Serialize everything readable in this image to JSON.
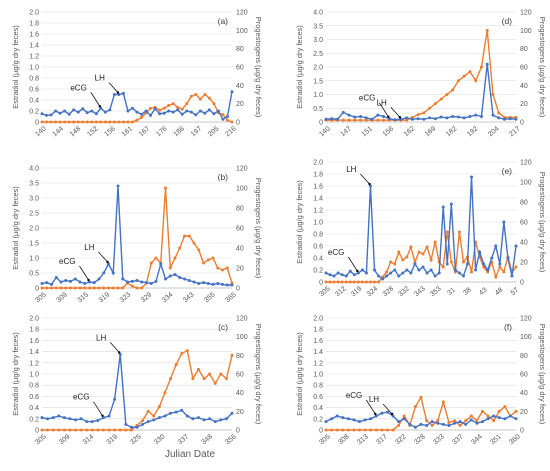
{
  "figure": {
    "xlabel": "Julian Date",
    "left_axis_label": "Estradiol (µg/g dry feces)",
    "right_axis_label": "Progestogens (µg/g dry feces)"
  },
  "colors": {
    "estradiol": "#4472c4",
    "progestogens": "#ed7d31",
    "grid": "#d9d9d9",
    "axis_text": "#595959"
  },
  "chart_data": [
    {
      "type": "line",
      "panel_label": "(a)",
      "x_tick_labels": [
        "140",
        "144",
        "148",
        "152",
        "156",
        "161",
        "167",
        "176",
        "186",
        "197",
        "205",
        "216"
      ],
      "y_left_lim": [
        0,
        2
      ],
      "y_left_ticks": [
        "0",
        "0.2",
        "0.4",
        "0.6",
        "0.8",
        "1.0",
        "1.2",
        "1.4",
        "1.6",
        "1.8",
        "2.0"
      ],
      "y_right_lim": [
        0,
        120
      ],
      "y_right_ticks": [
        "0",
        "20",
        "40",
        "60",
        "80",
        "100",
        "120"
      ],
      "grid": true,
      "series": [
        {
          "axis": "left",
          "color": "#4472c4",
          "values": [
            0.15,
            0.12,
            0.13,
            0.2,
            0.16,
            0.2,
            0.14,
            0.22,
            0.18,
            0.24,
            0.17,
            0.2,
            0.15,
            0.25,
            0.18,
            0.22,
            0.5,
            0.5,
            0.52,
            0.2,
            0.25,
            0.18,
            0.14,
            0.2,
            0.12,
            0.24,
            0.15,
            0.16,
            0.2,
            0.18,
            0.22,
            0.14,
            0.2,
            0.18,
            0.13,
            0.2,
            0.16,
            0.22,
            0.15,
            0.2,
            0.05,
            0.1,
            0.55
          ]
        },
        {
          "axis": "right",
          "color": "#ed7d31",
          "values": [
            0,
            0,
            0,
            0,
            0,
            0,
            0,
            0,
            0,
            0,
            0,
            0,
            0,
            0,
            0,
            0,
            0,
            0,
            0,
            0,
            0,
            2,
            5,
            10,
            15,
            16,
            13,
            15,
            18,
            20,
            16,
            14,
            20,
            28,
            30,
            25,
            30,
            26,
            20,
            10,
            8,
            2,
            0
          ]
        }
      ],
      "annotations": [
        {
          "text": "eCG",
          "x_index": 13
        },
        {
          "text": "LH",
          "x_index": 17
        }
      ]
    },
    {
      "type": "line",
      "panel_label": "(b)",
      "x_tick_labels": [
        "305",
        "309",
        "315",
        "319",
        "323",
        "329",
        "334",
        "343",
        "355",
        "365"
      ],
      "y_left_lim": [
        0,
        4
      ],
      "y_left_ticks": [
        "0",
        "0.5",
        "1.0",
        "1.5",
        "2.0",
        "2.5",
        "3.0",
        "3.5",
        "4.0"
      ],
      "y_right_lim": [
        0,
        120
      ],
      "y_right_ticks": [
        "0",
        "20",
        "40",
        "60",
        "80",
        "100",
        "120"
      ],
      "grid": true,
      "series": [
        {
          "axis": "left",
          "color": "#4472c4",
          "values": [
            0.15,
            0.18,
            0.12,
            0.35,
            0.2,
            0.25,
            0.22,
            0.3,
            0.2,
            0.15,
            0.2,
            0.18,
            0.3,
            0.5,
            0.8,
            0.5,
            3.4,
            0.3,
            0.2,
            0.22,
            0.25,
            0.2,
            0.18,
            0.15,
            0.22,
            0.8,
            0.3,
            0.4,
            0.45,
            0.35,
            0.3,
            0.25,
            0.2,
            0.15,
            0.18,
            0.15,
            0.12,
            0.15,
            0.12,
            0.1,
            0.1
          ]
        },
        {
          "axis": "right",
          "color": "#ed7d31",
          "values": [
            0,
            0,
            0,
            0,
            0,
            0,
            0,
            0,
            0,
            0,
            0,
            0,
            0,
            0,
            0,
            0,
            0,
            0,
            5,
            2,
            0,
            0,
            5,
            25,
            30,
            25,
            100,
            20,
            30,
            40,
            52,
            52,
            45,
            38,
            25,
            28,
            30,
            20,
            18,
            20,
            5
          ]
        }
      ],
      "annotations": [
        {
          "text": "eCG",
          "x_index": 10
        },
        {
          "text": "LH",
          "x_index": 14
        }
      ]
    },
    {
      "type": "line",
      "panel_label": "(c)",
      "x_tick_labels": [
        "305",
        "309",
        "314",
        "319",
        "325",
        "330",
        "337",
        "348",
        "356"
      ],
      "y_left_lim": [
        0,
        2
      ],
      "y_left_ticks": [
        "0",
        "0.2",
        "0.4",
        "0.6",
        "0.8",
        "1.0",
        "1.2",
        "1.4",
        "1.6",
        "1.8",
        "2.0"
      ],
      "y_right_lim": [
        0,
        120
      ],
      "y_right_ticks": [
        "0",
        "20",
        "40",
        "60",
        "80",
        "100",
        "120"
      ],
      "grid": true,
      "series": [
        {
          "axis": "left",
          "color": "#4472c4",
          "values": [
            0.22,
            0.2,
            0.22,
            0.25,
            0.22,
            0.2,
            0.18,
            0.2,
            0.15,
            0.15,
            0.17,
            0.22,
            0.25,
            0.55,
            1.35,
            0.1,
            0.05,
            0.05,
            0.1,
            0.15,
            0.18,
            0.22,
            0.25,
            0.3,
            0.32,
            0.35,
            0.25,
            0.2,
            0.22,
            0.18,
            0.2,
            0.15,
            0.18,
            0.2,
            0.3
          ]
        },
        {
          "axis": "right",
          "color": "#ed7d31",
          "values": [
            0,
            0,
            0,
            0,
            0,
            0,
            0,
            0,
            0,
            0,
            0,
            0,
            0,
            0,
            0,
            0,
            0,
            5,
            10,
            20,
            15,
            25,
            40,
            55,
            70,
            82,
            85,
            55,
            65,
            55,
            60,
            50,
            60,
            55,
            80
          ]
        }
      ],
      "annotations": [
        {
          "text": "eCG",
          "x_index": 11
        },
        {
          "text": "LH",
          "x_index": 14
        }
      ]
    },
    {
      "type": "line",
      "panel_label": "(d)",
      "x_tick_labels": [
        "140",
        "147",
        "151",
        "156",
        "162",
        "169",
        "182",
        "192",
        "204",
        "217"
      ],
      "y_left_lim": [
        0,
        4
      ],
      "y_left_ticks": [
        "0",
        "0.5",
        "1.0",
        "1.5",
        "2.0",
        "2.5",
        "3.0",
        "3.5",
        "4.0"
      ],
      "y_right_lim": [
        0,
        120
      ],
      "y_right_ticks": [
        "0",
        "20",
        "40",
        "60",
        "80",
        "100",
        "120"
      ],
      "grid": true,
      "series": [
        {
          "axis": "left",
          "color": "#4472c4",
          "values": [
            0.1,
            0.12,
            0.1,
            0.35,
            0.25,
            0.18,
            0.2,
            0.15,
            0.1,
            0.25,
            0.2,
            0.12,
            0.08,
            0.1,
            0.15,
            0.1,
            0.12,
            0.1,
            0.15,
            0.12,
            0.18,
            0.15,
            0.2,
            0.18,
            0.15,
            0.2,
            0.25,
            0.2,
            2.1,
            0.25,
            0.15,
            0.1,
            0.12,
            0.1
          ]
        },
        {
          "axis": "right",
          "color": "#ed7d31",
          "values": [
            2,
            2,
            2,
            2,
            2,
            2,
            2,
            2,
            2,
            2,
            2,
            2,
            2,
            2,
            2,
            5,
            8,
            10,
            15,
            20,
            25,
            30,
            35,
            45,
            50,
            55,
            45,
            60,
            100,
            30,
            10,
            5,
            5,
            5
          ]
        }
      ],
      "annotations": [
        {
          "text": "eCG",
          "x_index": 11
        },
        {
          "text": "LH",
          "x_index": 13
        }
      ]
    },
    {
      "type": "line",
      "panel_label": "(e)",
      "x_tick_labels": [
        "305",
        "312",
        "319",
        "324",
        "328",
        "332",
        "343",
        "353",
        "31",
        "38",
        "43",
        "48",
        "57"
      ],
      "y_left_lim": [
        0,
        2
      ],
      "y_left_ticks": [
        "0",
        "0.2",
        "0.4",
        "0.6",
        "0.8",
        "1.0",
        "1.2",
        "1.4",
        "1.6",
        "1.8",
        "2.0"
      ],
      "y_right_lim": [
        0,
        120
      ],
      "y_right_ticks": [
        "0",
        "20",
        "40",
        "60",
        "80",
        "100",
        "120"
      ],
      "grid": true,
      "series": [
        {
          "axis": "left",
          "color": "#4472c4",
          "values": [
            0.15,
            0.12,
            0.1,
            0.15,
            0.12,
            0.1,
            0.18,
            0.12,
            0.15,
            0.2,
            0.15,
            1.6,
            0.2,
            0.1,
            0.05,
            0.1,
            0.15,
            0.2,
            0.1,
            0.15,
            0.2,
            0.15,
            0.3,
            0.2,
            0.25,
            0.15,
            0.2,
            0.1,
            0.15,
            1.25,
            0.3,
            1.3,
            0.2,
            0.15,
            0.1,
            0.3,
            1.75,
            0.2,
            0.5,
            0.3,
            0.2,
            0.4,
            0.6,
            0.3,
            1.0,
            0.4,
            0.1,
            0.6
          ]
        },
        {
          "axis": "right",
          "color": "#ed7d31",
          "values": [
            0,
            0,
            0,
            0,
            0,
            0,
            0,
            0,
            0,
            0,
            0,
            0,
            0,
            0,
            5,
            10,
            20,
            18,
            30,
            22,
            25,
            35,
            20,
            30,
            28,
            35,
            22,
            40,
            20,
            15,
            50,
            20,
            10,
            50,
            20,
            25,
            10,
            40,
            25,
            15,
            10,
            20,
            5,
            15,
            10,
            25,
            10,
            15
          ]
        }
      ],
      "annotations": [
        {
          "text": "eCG",
          "x_index": 8
        },
        {
          "text": "LH",
          "x_index": 11
        }
      ]
    },
    {
      "type": "line",
      "panel_label": "(f)",
      "x_tick_labels": [
        "305",
        "308",
        "313",
        "317",
        "322",
        "328",
        "333",
        "337",
        "344",
        "351",
        "360"
      ],
      "y_left_lim": [
        0,
        2
      ],
      "y_left_ticks": [
        "0",
        "0.2",
        "0.4",
        "0.6",
        "0.8",
        "1.0",
        "1.2",
        "1.4",
        "1.6",
        "1.8",
        "2.0"
      ],
      "y_right_lim": [
        0,
        120
      ],
      "y_right_ticks": [
        "0",
        "20",
        "40",
        "60",
        "80",
        "100",
        "120"
      ],
      "grid": true,
      "series": [
        {
          "axis": "left",
          "color": "#4472c4",
          "values": [
            0.15,
            0.2,
            0.25,
            0.22,
            0.2,
            0.18,
            0.15,
            0.18,
            0.2,
            0.25,
            0.3,
            0.32,
            0.25,
            0.15,
            0.2,
            0.1,
            0.05,
            0.1,
            0.08,
            0.15,
            0.12,
            0.1,
            0.08,
            0.12,
            0.15,
            0.1,
            0.18,
            0.12,
            0.15,
            0.2,
            0.25,
            0.22,
            0.2,
            0.25,
            0.2
          ]
        },
        {
          "axis": "right",
          "color": "#ed7d31",
          "values": [
            0,
            0,
            0,
            0,
            0,
            0,
            0,
            0,
            0,
            0,
            0,
            0,
            0,
            5,
            15,
            5,
            25,
            35,
            10,
            5,
            10,
            30,
            8,
            10,
            5,
            10,
            15,
            10,
            20,
            15,
            10,
            20,
            25,
            15,
            20
          ]
        }
      ],
      "annotations": [
        {
          "text": "eCG",
          "x_index": 9
        },
        {
          "text": "LH",
          "x_index": 12
        }
      ]
    }
  ]
}
